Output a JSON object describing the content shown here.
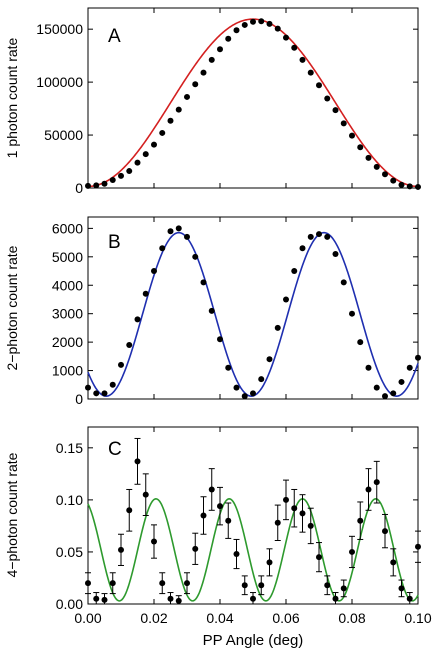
{
  "chart_data": [
    {
      "type": "scatter",
      "panel_label": "A",
      "ylabel": "1 photon count rate",
      "xlim": [
        0,
        0.1
      ],
      "ylim": [
        0,
        170000
      ],
      "xticks": [
        0.0,
        0.02,
        0.04,
        0.06,
        0.08,
        0.1
      ],
      "yticks": [
        0,
        50000,
        100000,
        150000
      ],
      "ytick_labels": [
        "0",
        "50000",
        "100000",
        "150000"
      ],
      "fit_color": "#d42020",
      "fit": {
        "kind": "sin2",
        "amplitude": 158000,
        "offset": 1500,
        "period": 0.1,
        "phase": 0
      },
      "series": [
        {
          "name": "",
          "color": "#000000",
          "x": [
            0.0,
            0.0025,
            0.005,
            0.0075,
            0.01,
            0.0125,
            0.015,
            0.0175,
            0.02,
            0.0225,
            0.025,
            0.0275,
            0.03,
            0.0325,
            0.035,
            0.0375,
            0.04,
            0.0425,
            0.045,
            0.0475,
            0.05,
            0.0525,
            0.055,
            0.0575,
            0.06,
            0.0625,
            0.065,
            0.0675,
            0.07,
            0.0725,
            0.075,
            0.0775,
            0.08,
            0.0825,
            0.085,
            0.0875,
            0.09,
            0.0925,
            0.095,
            0.0975,
            0.1
          ],
          "y": [
            2000,
            2500,
            4000,
            7500,
            11500,
            16000,
            24000,
            32000,
            41000,
            52000,
            63500,
            74000,
            86000,
            98000,
            109000,
            121000,
            131000,
            141000,
            149000,
            154000,
            157000,
            157500,
            155000,
            150500,
            142000,
            132500,
            121000,
            109000,
            97000,
            84500,
            73500,
            61000,
            49500,
            38500,
            28500,
            20000,
            13000,
            7000,
            3000,
            1500,
            1000
          ]
        }
      ]
    },
    {
      "type": "scatter",
      "panel_label": "B",
      "ylabel": "2−photon count rate",
      "xlim": [
        0,
        0.1
      ],
      "ylim": [
        0,
        6400
      ],
      "xticks": [
        0.0,
        0.02,
        0.04,
        0.06,
        0.08,
        0.1
      ],
      "yticks": [
        0,
        1000,
        2000,
        3000,
        4000,
        5000,
        6000
      ],
      "ytick_labels": [
        "0",
        "1000",
        "2000",
        "3000",
        "4000",
        "5000",
        "6000"
      ],
      "fit_color": "#1f2fb0",
      "fit": {
        "kind": "sin2",
        "amplitude": 5750,
        "offset": 100,
        "period": 0.044,
        "phase": 0.0055
      },
      "series": [
        {
          "name": "",
          "color": "#000000",
          "x": [
            0.0,
            0.0025,
            0.005,
            0.0075,
            0.01,
            0.0125,
            0.015,
            0.0175,
            0.02,
            0.0225,
            0.025,
            0.0275,
            0.03,
            0.0325,
            0.035,
            0.0375,
            0.04,
            0.0425,
            0.045,
            0.0475,
            0.05,
            0.0525,
            0.055,
            0.0575,
            0.06,
            0.0625,
            0.065,
            0.0675,
            0.07,
            0.0725,
            0.075,
            0.0775,
            0.08,
            0.0825,
            0.085,
            0.0875,
            0.09,
            0.0925,
            0.095,
            0.0975,
            0.1
          ],
          "y": [
            400,
            200,
            200,
            500,
            1200,
            1900,
            2800,
            3700,
            4500,
            5300,
            5900,
            6000,
            5700,
            5000,
            4100,
            3100,
            2100,
            1100,
            400,
            100,
            200,
            700,
            1400,
            2500,
            3500,
            4500,
            5300,
            5700,
            5800,
            5700,
            5100,
            4100,
            3000,
            2000,
            1100,
            400,
            100,
            200,
            600,
            1100,
            1450
          ]
        }
      ]
    },
    {
      "type": "scatter",
      "panel_label": "C",
      "ylabel": "4−photon count rate",
      "xlabel": "PP Angle (deg)",
      "xlim": [
        0,
        0.1
      ],
      "ylim": [
        0,
        0.17
      ],
      "xticks": [
        0.0,
        0.02,
        0.04,
        0.06,
        0.08,
        0.1
      ],
      "xtick_labels": [
        "0.00",
        "0.02",
        "0.04",
        "0.06",
        "0.08",
        "0.10"
      ],
      "yticks": [
        0,
        0.05,
        0.1,
        0.15
      ],
      "ytick_labels": [
        "0.00",
        "0.05",
        "0.10",
        "0.15"
      ],
      "fit_color": "#2e9a2e",
      "fit": {
        "kind": "sin2",
        "amplitude": 0.098,
        "offset": 0.003,
        "period": 0.0222,
        "phase": 0.0095
      },
      "series": [
        {
          "name": "",
          "color": "#000000",
          "x": [
            0.0,
            0.0025,
            0.005,
            0.0075,
            0.01,
            0.0125,
            0.015,
            0.0175,
            0.02,
            0.0225,
            0.025,
            0.0275,
            0.03,
            0.0325,
            0.035,
            0.0375,
            0.04,
            0.0425,
            0.045,
            0.0475,
            0.05,
            0.0525,
            0.055,
            0.0575,
            0.06,
            0.0625,
            0.065,
            0.0675,
            0.07,
            0.0725,
            0.075,
            0.0775,
            0.08,
            0.0825,
            0.085,
            0.0875,
            0.09,
            0.0925,
            0.095,
            0.0975,
            0.1
          ],
          "y": [
            0.02,
            0.005,
            0.004,
            0.02,
            0.052,
            0.09,
            0.137,
            0.105,
            0.06,
            0.02,
            0.005,
            0.003,
            0.02,
            0.053,
            0.085,
            0.11,
            0.094,
            0.08,
            0.048,
            0.018,
            0.005,
            0.018,
            0.04,
            0.078,
            0.1,
            0.092,
            0.087,
            0.075,
            0.045,
            0.018,
            0.005,
            0.015,
            0.05,
            0.08,
            0.11,
            0.117,
            0.07,
            0.04,
            0.015,
            0.005,
            0.055
          ],
          "err": [
            0.01,
            0.006,
            0.006,
            0.01,
            0.015,
            0.02,
            0.022,
            0.02,
            0.016,
            0.01,
            0.006,
            0.005,
            0.01,
            0.015,
            0.018,
            0.02,
            0.018,
            0.017,
            0.014,
            0.009,
            0.006,
            0.009,
            0.013,
            0.017,
            0.019,
            0.018,
            0.018,
            0.017,
            0.014,
            0.009,
            0.006,
            0.008,
            0.015,
            0.018,
            0.02,
            0.02,
            0.016,
            0.013,
            0.008,
            0.006,
            0.015
          ]
        }
      ]
    }
  ]
}
